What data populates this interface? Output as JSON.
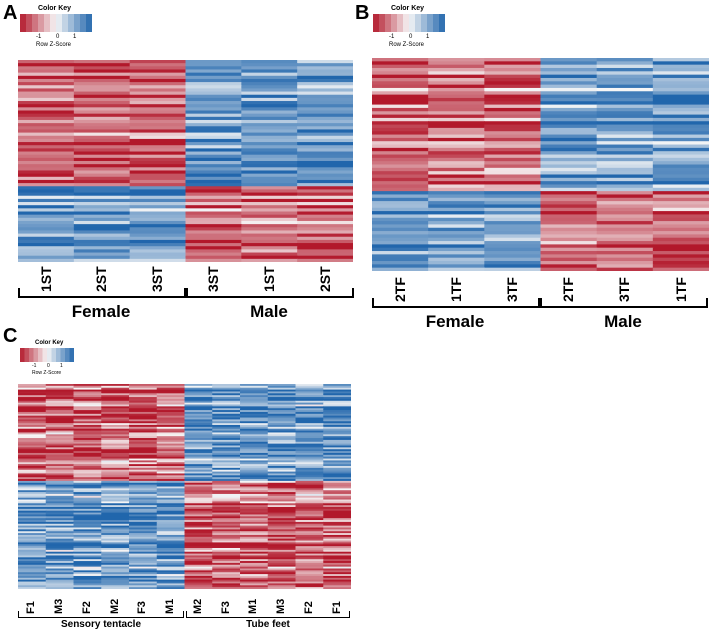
{
  "panels": [
    {
      "id": "A",
      "letter": "A",
      "color_key": {
        "title": "Color Key",
        "subtitle": "Row Z-Score",
        "ticks": [
          "-1",
          "0",
          "1"
        ]
      },
      "columns": [
        "1ST",
        "2ST",
        "3ST",
        "3ST",
        "1ST",
        "2ST"
      ],
      "groups": [
        {
          "label": "Female",
          "span": 3
        },
        {
          "label": "Male",
          "span": 3
        }
      ],
      "pattern": {
        "seed": 11,
        "split": 0.63,
        "noise": 0.55
      }
    },
    {
      "id": "B",
      "letter": "B",
      "color_key": {
        "title": "Color Key",
        "subtitle": "Row Z-Score",
        "ticks": [
          "-1",
          "0",
          "1"
        ]
      },
      "columns": [
        "2TF",
        "1TF",
        "3TF",
        "2TF",
        "3TF",
        "1TF"
      ],
      "groups": [
        {
          "label": "Female",
          "span": 3
        },
        {
          "label": "Male",
          "span": 3
        }
      ],
      "pattern": {
        "seed": 23,
        "split": 0.62,
        "noise": 0.55
      }
    },
    {
      "id": "C",
      "letter": "C",
      "color_key": {
        "title": "Color Key",
        "subtitle": "Row Z-Score",
        "ticks": [
          "-1",
          "0",
          "1"
        ]
      },
      "columns": [
        "F1",
        "M3",
        "F2",
        "M2",
        "F3",
        "M1",
        "M2",
        "F3",
        "M1",
        "M3",
        "F2",
        "F1"
      ],
      "groups": [
        {
          "label": "Sensory tentacle",
          "span": 6
        },
        {
          "label": "Tube feet",
          "span": 6
        }
      ],
      "pattern": {
        "seed": 37,
        "split": 0.47,
        "noise": 0.7
      }
    }
  ],
  "chart_data": [
    {
      "type": "heatmap",
      "panel": "A",
      "x": [
        "1ST",
        "2ST",
        "3ST",
        "3ST",
        "1ST",
        "2ST"
      ],
      "groups": [
        "Female",
        "Male"
      ],
      "legend": {
        "title": "Color Key",
        "label": "Row Z-Score",
        "ticks": [
          -1,
          0,
          1
        ],
        "range": [
          -1.5,
          1.5
        ],
        "low_color": "#b2182b",
        "mid_color": "#f7f7f7",
        "high_color": "#2166ac"
      }
    },
    {
      "type": "heatmap",
      "panel": "B",
      "x": [
        "2TF",
        "1TF",
        "3TF",
        "2TF",
        "3TF",
        "1TF"
      ],
      "groups": [
        "Female",
        "Male"
      ],
      "legend": {
        "title": "Color Key",
        "label": "Row Z-Score",
        "ticks": [
          -1,
          0,
          1
        ],
        "range": [
          -1.5,
          1.5
        ],
        "low_color": "#b2182b",
        "mid_color": "#f7f7f7",
        "high_color": "#2166ac"
      }
    },
    {
      "type": "heatmap",
      "panel": "C",
      "x": [
        "F1",
        "M3",
        "F2",
        "M2",
        "F3",
        "M1",
        "M2",
        "F3",
        "M1",
        "M3",
        "F2",
        "F1"
      ],
      "groups": [
        "Sensory tentacle",
        "Tube feet"
      ],
      "legend": {
        "title": "Color Key",
        "label": "Row Z-Score",
        "ticks": [
          -1,
          0,
          1
        ],
        "range": [
          -1.5,
          1.5
        ],
        "low_color": "#b2182b",
        "mid_color": "#f7f7f7",
        "high_color": "#2166ac"
      }
    }
  ]
}
